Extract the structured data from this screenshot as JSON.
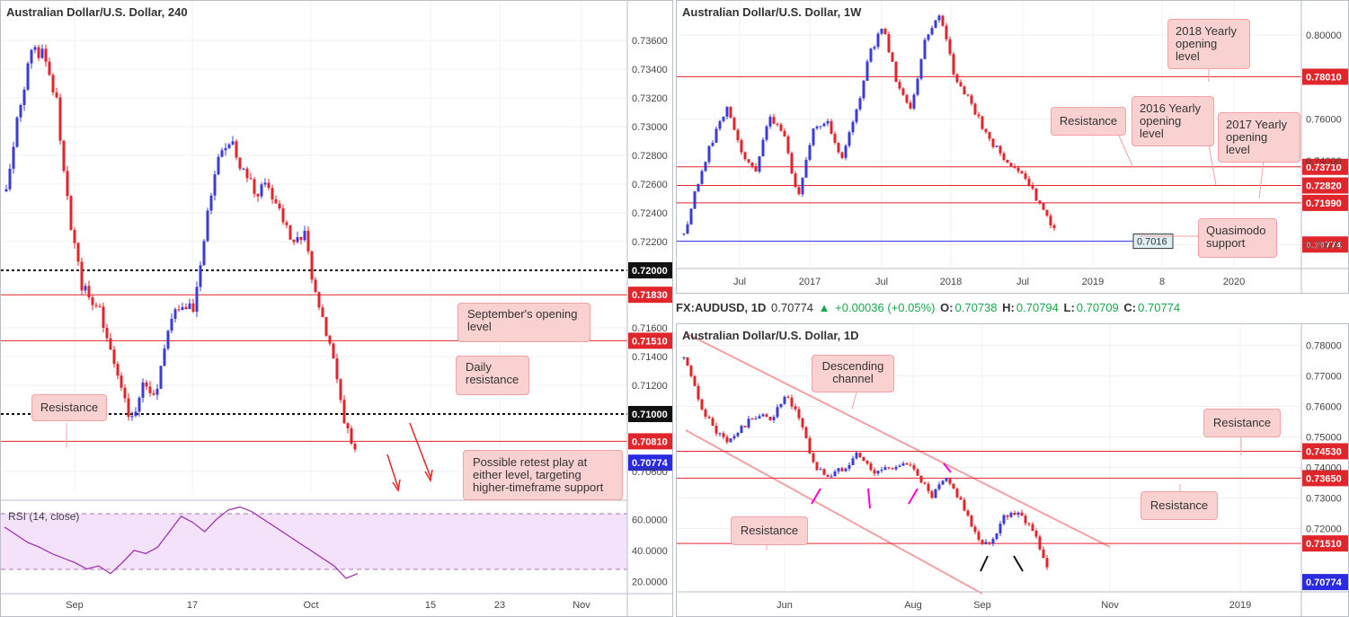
{
  "colors": {
    "up": "#3b3bd6",
    "down": "#e0252b",
    "resistance": "#e0252b",
    "support": "#2a2ae0",
    "channel": "#f4a0a4",
    "annotation_bg": "#f9d1d1",
    "rsi": "#9c27b0"
  },
  "top_right_info": {
    "symbol": "FX:AUDUSD, 1D",
    "last": "0.70774",
    "change_icon": "triangle-up-icon",
    "change": "+0.00036 (+0.05%)",
    "open_label": "O:",
    "open": "0.70738",
    "high_label": "H:",
    "high": "0.70794",
    "low_label": "L:",
    "low": "0.70709",
    "close_label": "C:",
    "close": "0.70774"
  },
  "chart_data": [
    {
      "type": "candlestick",
      "title": "Australian Dollar/U.S. Dollar, 240",
      "ylim": [
        0.705,
        0.7375
      ],
      "y_ticks": [
        "0.73600",
        "0.73400",
        "0.73200",
        "0.73000",
        "0.72800",
        "0.72600",
        "0.72400",
        "0.72200",
        "0.71600",
        "0.71400",
        "0.71200",
        "0.70600"
      ],
      "x_ticks": [
        "Sep",
        "17",
        "Oct",
        "15",
        "23",
        "Nov"
      ],
      "levels": [
        {
          "value": 0.72,
          "label": "0.72000",
          "style": "dotted",
          "color": "#111111"
        },
        {
          "value": 0.7183,
          "label": "0.71830",
          "style": "solid",
          "color": "#e0252b"
        },
        {
          "value": 0.7151,
          "label": "0.71510",
          "style": "solid",
          "color": "#e0252b"
        },
        {
          "value": 0.71,
          "label": "0.71000",
          "style": "dotted",
          "color": "#111111"
        },
        {
          "value": 0.7081,
          "label": "0.70810",
          "style": "solid",
          "color": "#e0252b"
        }
      ],
      "last_price": {
        "value": 0.70774,
        "label": "0.70774"
      },
      "price_path": [
        {
          "x": "Aug 20",
          "y": 0.7255
        },
        {
          "x": "Aug 22",
          "y": 0.731
        },
        {
          "x": "Aug 24",
          "y": 0.7355
        },
        {
          "x": "Aug 27",
          "y": 0.735
        },
        {
          "x": "Aug 29",
          "y": 0.732
        },
        {
          "x": "Aug 31",
          "y": 0.724
        },
        {
          "x": "Sep 3",
          "y": 0.719
        },
        {
          "x": "Sep 5",
          "y": 0.718
        },
        {
          "x": "Sep 7",
          "y": 0.716
        },
        {
          "x": "Sep 10",
          "y": 0.712
        },
        {
          "x": "Sep 11",
          "y": 0.7095
        },
        {
          "x": "Sep 12",
          "y": 0.712
        },
        {
          "x": "Sep 13",
          "y": 0.711
        },
        {
          "x": "Sep 14",
          "y": 0.716
        },
        {
          "x": "Sep 17",
          "y": 0.718
        },
        {
          "x": "Sep 18",
          "y": 0.717
        },
        {
          "x": "Sep 19",
          "y": 0.723
        },
        {
          "x": "Sep 20",
          "y": 0.728
        },
        {
          "x": "Sep 21",
          "y": 0.729
        },
        {
          "x": "Sep 24",
          "y": 0.727
        },
        {
          "x": "Sep 25",
          "y": 0.7255
        },
        {
          "x": "Sep 26",
          "y": 0.726
        },
        {
          "x": "Sep 27",
          "y": 0.724
        },
        {
          "x": "Sep 28",
          "y": 0.722
        },
        {
          "x": "Oct 1",
          "y": 0.7225
        },
        {
          "x": "Oct 2",
          "y": 0.7175
        },
        {
          "x": "Oct 3",
          "y": 0.715
        },
        {
          "x": "Oct 4",
          "y": 0.71
        },
        {
          "x": "Oct 5",
          "y": 0.7077
        }
      ],
      "annotations": [
        "Resistance",
        "September's opening level",
        "Daily resistance",
        "Possible retest play at either level, targeting higher-timeframe support"
      ]
    },
    {
      "type": "line",
      "title": "RSI (14, close)",
      "ylim": [
        15,
        70
      ],
      "y_ticks": [
        "60.0000",
        "40.0000",
        "20.0000"
      ],
      "bands": [
        70,
        30
      ],
      "values": [
        55,
        50,
        45,
        42,
        38,
        35,
        32,
        28,
        30,
        25,
        32,
        40,
        38,
        42,
        52,
        62,
        58,
        52,
        60,
        66,
        68,
        65,
        60,
        55,
        50,
        45,
        40,
        35,
        30,
        22,
        25
      ]
    },
    {
      "type": "candlestick",
      "title": "Australian Dollar/U.S. Dollar, 1W",
      "ylim": [
        0.692,
        0.812
      ],
      "y_ticks": [
        "0.80000",
        "0.76000",
        "0.74000",
        "0.70000"
      ],
      "x_ticks": [
        "Jul",
        "2017",
        "Jul",
        "2018",
        "Jul",
        "2019",
        "8",
        "2020"
      ],
      "levels": [
        {
          "value": 0.7801,
          "label": "0.78010",
          "color": "#e0252b"
        },
        {
          "value": 0.7371,
          "label": "0.73710",
          "color": "#e0252b"
        },
        {
          "value": 0.7282,
          "label": "0.72820",
          "color": "#e0252b"
        },
        {
          "value": 0.7199,
          "label": "0.71990",
          "color": "#e0252b"
        },
        {
          "value": 0.7016,
          "label": "0.7016",
          "color": "#2a2ae0"
        }
      ],
      "last_price": {
        "value": 0.70774,
        "label": "0.70774"
      },
      "price_path": [
        {
          "x": "2016-04",
          "y": 0.705
        },
        {
          "x": "2016-05",
          "y": 0.73
        },
        {
          "x": "2016-06",
          "y": 0.75
        },
        {
          "x": "2016-07",
          "y": 0.765
        },
        {
          "x": "2016-08",
          "y": 0.745
        },
        {
          "x": "2016-09",
          "y": 0.735
        },
        {
          "x": "2016-10",
          "y": 0.76
        },
        {
          "x": "2016-11",
          "y": 0.755
        },
        {
          "x": "2016-12",
          "y": 0.72
        },
        {
          "x": "2017-01",
          "y": 0.755
        },
        {
          "x": "2017-03",
          "y": 0.76
        },
        {
          "x": "2017-05",
          "y": 0.74
        },
        {
          "x": "2017-06",
          "y": 0.76
        },
        {
          "x": "2017-07",
          "y": 0.79
        },
        {
          "x": "2017-09",
          "y": 0.805
        },
        {
          "x": "2017-10",
          "y": 0.775
        },
        {
          "x": "2017-12",
          "y": 0.765
        },
        {
          "x": "2018-01",
          "y": 0.8
        },
        {
          "x": "2018-02",
          "y": 0.81
        },
        {
          "x": "2018-03",
          "y": 0.78
        },
        {
          "x": "2018-04",
          "y": 0.77
        },
        {
          "x": "2018-05",
          "y": 0.755
        },
        {
          "x": "2018-06",
          "y": 0.745
        },
        {
          "x": "2018-07",
          "y": 0.738
        },
        {
          "x": "2018-08",
          "y": 0.73
        },
        {
          "x": "2018-09",
          "y": 0.72
        },
        {
          "x": "2018-10",
          "y": 0.7077
        }
      ],
      "annotations": [
        "2018 Yearly opening level",
        "Resistance",
        "2016 Yearly opening level",
        "2017 Yearly opening level",
        "Quasimodo support"
      ]
    },
    {
      "type": "candlestick",
      "title": "Australian Dollar/U.S. Dollar, 1D",
      "ylim": [
        0.701,
        0.784
      ],
      "y_ticks": [
        "0.78000",
        "0.77000",
        "0.76000",
        "0.75000",
        "0.74000",
        "0.73000",
        "0.72000"
      ],
      "x_ticks": [
        "Jun",
        "Aug",
        "Sep",
        "Nov",
        "2019"
      ],
      "levels": [
        {
          "value": 0.7453,
          "label": "0.74530",
          "color": "#e0252b"
        },
        {
          "value": 0.7365,
          "label": "0.73650",
          "color": "#e0252b"
        },
        {
          "value": 0.7151,
          "label": "0.71510",
          "color": "#e0252b"
        }
      ],
      "last_price": {
        "value": 0.70774,
        "label": "0.70774"
      },
      "price_path": [
        {
          "x": "Apr 16",
          "y": 0.776
        },
        {
          "x": "Apr 23",
          "y": 0.762
        },
        {
          "x": "Apr 30",
          "y": 0.753
        },
        {
          "x": "May 7",
          "y": 0.748
        },
        {
          "x": "May 14",
          "y": 0.753
        },
        {
          "x": "May 21",
          "y": 0.757
        },
        {
          "x": "May 28",
          "y": 0.756
        },
        {
          "x": "Jun 4",
          "y": 0.763
        },
        {
          "x": "Jun 11",
          "y": 0.756
        },
        {
          "x": "Jun 18",
          "y": 0.74
        },
        {
          "x": "Jun 25",
          "y": 0.737
        },
        {
          "x": "Jul 2",
          "y": 0.74
        },
        {
          "x": "Jul 9",
          "y": 0.745
        },
        {
          "x": "Jul 16",
          "y": 0.738
        },
        {
          "x": "Jul 23",
          "y": 0.74
        },
        {
          "x": "Jul 30",
          "y": 0.741
        },
        {
          "x": "Aug 6",
          "y": 0.739
        },
        {
          "x": "Aug 13",
          "y": 0.73
        },
        {
          "x": "Aug 20",
          "y": 0.736
        },
        {
          "x": "Aug 27",
          "y": 0.73
        },
        {
          "x": "Sep 3",
          "y": 0.718
        },
        {
          "x": "Sep 10",
          "y": 0.714
        },
        {
          "x": "Sep 17",
          "y": 0.724
        },
        {
          "x": "Sep 24",
          "y": 0.726
        },
        {
          "x": "Oct 1",
          "y": 0.72
        },
        {
          "x": "Oct 5",
          "y": 0.7077
        }
      ],
      "annotations": [
        "Descending channel",
        "Resistance",
        "Resistance",
        "Resistance"
      ]
    }
  ]
}
